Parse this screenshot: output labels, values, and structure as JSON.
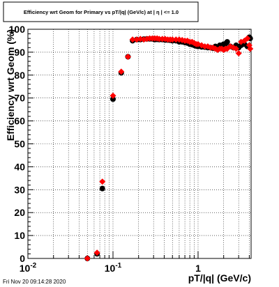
{
  "chart_data": {
    "type": "scatter",
    "title": "Efficiency wrt Geom for Primary vs pT/|q| (GeV/c) at | η | <= 1.0",
    "xlabel": "pT/|q| (GeV/c)",
    "ylabel": "Efficiency wrt Geom (%)",
    "xscale": "log",
    "xlim": [
      0.01,
      4.2
    ],
    "ylim": [
      0,
      100
    ],
    "grid": true,
    "y_ticks": [
      "0",
      "10",
      "20",
      "30",
      "40",
      "50",
      "60",
      "70",
      "80",
      "90",
      "100"
    ],
    "x_tick_labels": [
      {
        "value": 0.01,
        "base": "10",
        "exp": "-2"
      },
      {
        "value": 0.1,
        "base": "10",
        "exp": "-1"
      },
      {
        "value": 1,
        "base": "1",
        "exp": ""
      }
    ],
    "series": [
      {
        "color": "#000000",
        "marker": "circle",
        "points": [
          [
            0.05,
            0
          ],
          [
            0.065,
            2
          ],
          [
            0.075,
            30.5
          ],
          [
            0.1,
            69.5
          ],
          [
            0.125,
            81
          ],
          [
            0.15,
            88
          ],
          [
            0.17,
            95
          ],
          [
            0.19,
            95.5
          ],
          [
            0.21,
            95.5
          ],
          [
            0.23,
            95.7
          ],
          [
            0.25,
            95.8
          ],
          [
            0.27,
            95.8
          ],
          [
            0.29,
            95.8
          ],
          [
            0.31,
            95.5
          ],
          [
            0.33,
            95.6
          ],
          [
            0.35,
            95.5
          ],
          [
            0.38,
            95.5
          ],
          [
            0.41,
            95.3
          ],
          [
            0.44,
            95.3
          ],
          [
            0.47,
            95.2
          ],
          [
            0.5,
            95
          ],
          [
            0.55,
            95
          ],
          [
            0.6,
            94.5
          ],
          [
            0.65,
            94.5
          ],
          [
            0.7,
            94.2
          ],
          [
            0.75,
            94
          ],
          [
            0.8,
            93.5
          ],
          [
            0.85,
            93.3
          ],
          [
            0.9,
            93
          ],
          [
            0.95,
            92.7
          ],
          [
            1.0,
            92.5
          ],
          [
            1.1,
            92.3
          ],
          [
            1.2,
            92.2
          ],
          [
            1.3,
            92
          ],
          [
            1.4,
            92
          ],
          [
            1.5,
            91.7
          ],
          [
            1.6,
            92.5
          ],
          [
            1.7,
            92
          ],
          [
            1.8,
            93
          ],
          [
            1.9,
            93
          ],
          [
            2.0,
            93.5
          ],
          [
            2.1,
            93.7
          ],
          [
            2.2,
            94.5
          ],
          [
            2.4,
            92.5
          ],
          [
            2.6,
            92
          ],
          [
            2.8,
            93
          ],
          [
            3.0,
            92
          ],
          [
            3.2,
            93
          ],
          [
            3.5,
            93.5
          ],
          [
            3.8,
            92.5
          ],
          [
            4.0,
            96.5
          ],
          [
            4.1,
            96
          ]
        ]
      },
      {
        "color": "#ff0000",
        "marker": "diamond",
        "points": [
          [
            0.05,
            0
          ],
          [
            0.065,
            2.5
          ],
          [
            0.075,
            33.5
          ],
          [
            0.1,
            71
          ],
          [
            0.125,
            81.5
          ],
          [
            0.15,
            88
          ],
          [
            0.17,
            95.5
          ],
          [
            0.19,
            95.5
          ],
          [
            0.21,
            95.8
          ],
          [
            0.23,
            95.5
          ],
          [
            0.25,
            95.8
          ],
          [
            0.27,
            96
          ],
          [
            0.29,
            96
          ],
          [
            0.31,
            96
          ],
          [
            0.33,
            96
          ],
          [
            0.35,
            95.8
          ],
          [
            0.38,
            95.8
          ],
          [
            0.41,
            95.8
          ],
          [
            0.44,
            95.5
          ],
          [
            0.47,
            95.5
          ],
          [
            0.5,
            95.5
          ],
          [
            0.55,
            95.5
          ],
          [
            0.6,
            95.5
          ],
          [
            0.65,
            95.3
          ],
          [
            0.7,
            95
          ],
          [
            0.75,
            95
          ],
          [
            0.8,
            94.5
          ],
          [
            0.85,
            94.5
          ],
          [
            0.9,
            94
          ],
          [
            0.95,
            93.5
          ],
          [
            1.0,
            93.5
          ],
          [
            1.1,
            93
          ],
          [
            1.2,
            92.5
          ],
          [
            1.3,
            92.5
          ],
          [
            1.4,
            92
          ],
          [
            1.5,
            92
          ],
          [
            1.6,
            91.5
          ],
          [
            1.7,
            91
          ],
          [
            1.8,
            91.5
          ],
          [
            1.9,
            91.5
          ],
          [
            2.0,
            91
          ],
          [
            2.1,
            91.5
          ],
          [
            2.2,
            91.5
          ],
          [
            2.4,
            92.5
          ],
          [
            2.6,
            92
          ],
          [
            2.8,
            91.5
          ],
          [
            3.0,
            89.5
          ],
          [
            3.2,
            94.5
          ],
          [
            3.5,
            95
          ],
          [
            3.8,
            96
          ],
          [
            4.0,
            93
          ],
          [
            4.1,
            91.5
          ]
        ]
      }
    ],
    "timestamp": "Fri Nov 20 09:14:28 2020"
  }
}
